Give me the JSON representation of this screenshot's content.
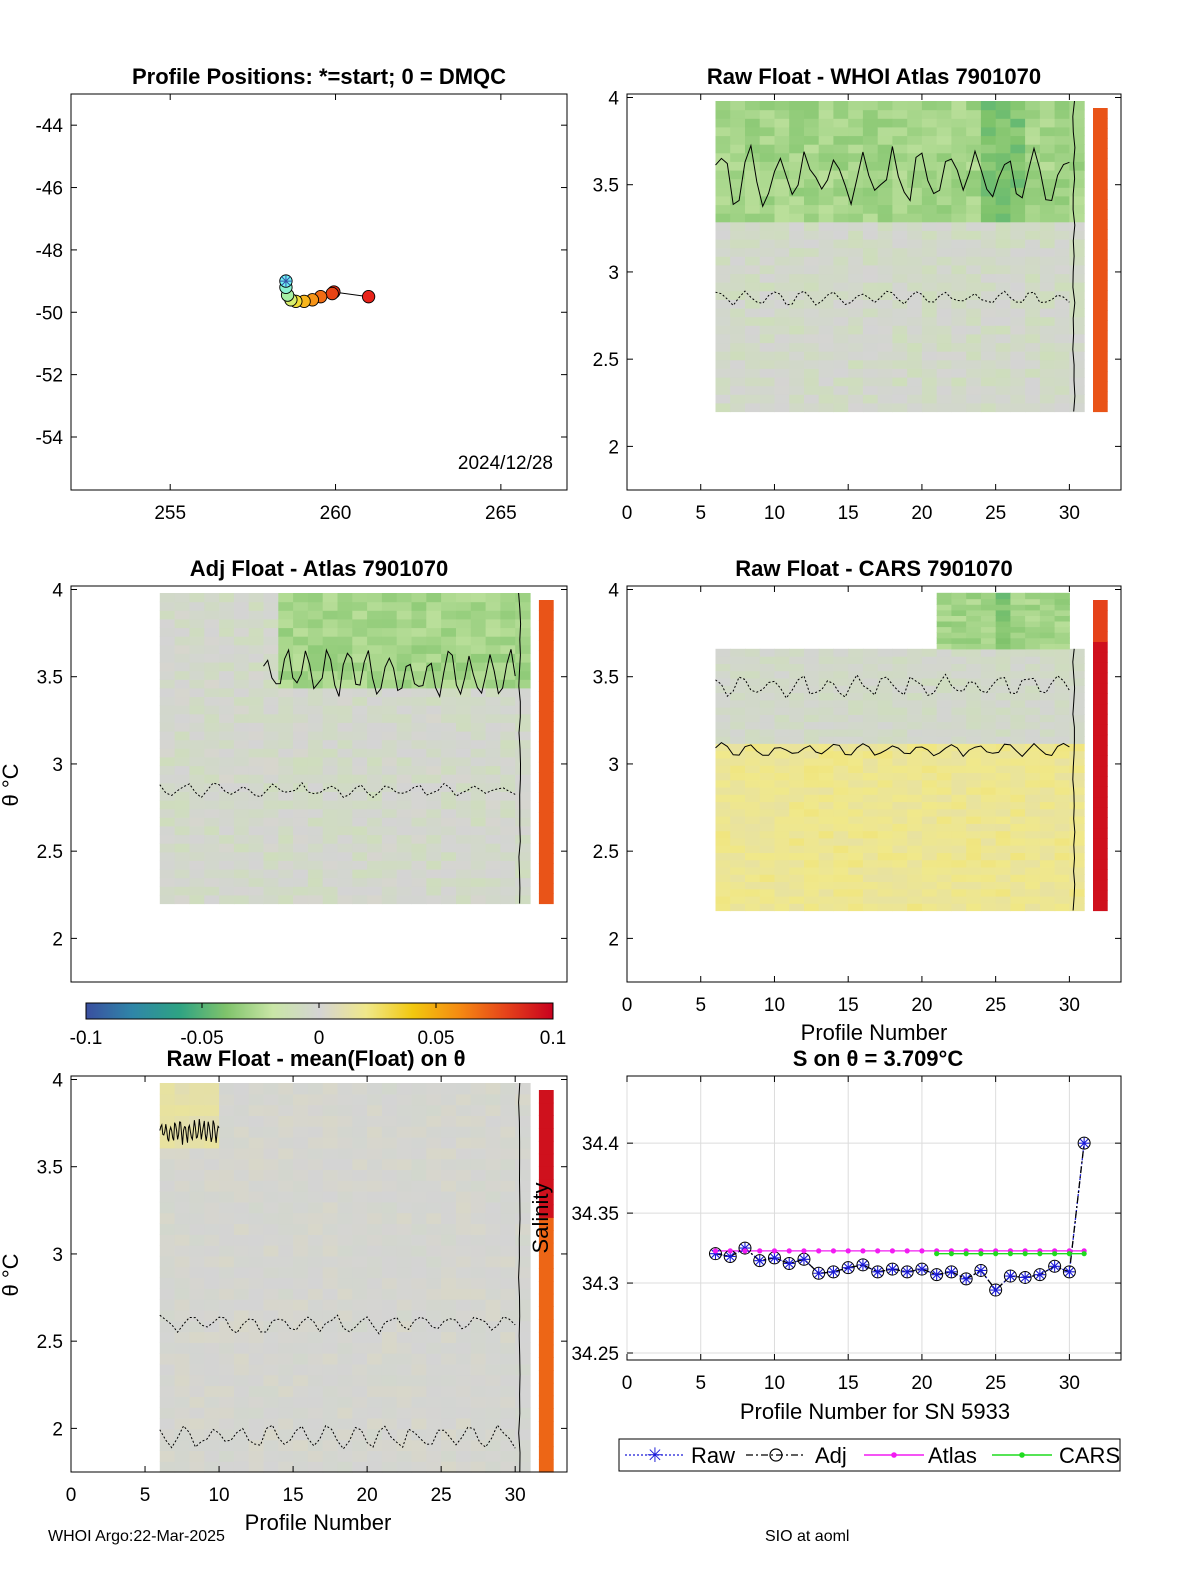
{
  "footer": {
    "left": "WHOI Argo:22-Mar-2025",
    "right": "SIO at aoml"
  },
  "colorbar": {
    "ticks": [
      "-0.1",
      "-0.05",
      "0",
      "0.05",
      "0.1"
    ],
    "range": [
      -0.1,
      0.1
    ],
    "colormap": [
      "#3a4fa0",
      "#2f86a8",
      "#2ea383",
      "#7fc36b",
      "#c9e6a6",
      "#d4d4d4",
      "#f0e88a",
      "#f2c80f",
      "#f58a12",
      "#e5421a",
      "#c8001e"
    ]
  },
  "chart_data": [
    {
      "id": "positions",
      "type": "scatter",
      "title": "Profile Positions: *=start; 0 = DMQC",
      "xlim": [
        252,
        267
      ],
      "ylim": [
        -55.7,
        -43
      ],
      "xticks": [
        "255",
        "260",
        "265"
      ],
      "yticks": [
        "-44",
        "-46",
        "-48",
        "-50",
        "-52",
        "-54"
      ],
      "date_label": "2024/12/28",
      "points": [
        {
          "x": 258.5,
          "y": -49.0,
          "c": "#70f2f4",
          "marker": "star"
        },
        {
          "x": 258.5,
          "y": -49.2,
          "c": "#8af1d0"
        },
        {
          "x": 258.55,
          "y": -49.45,
          "c": "#a6f0a4"
        },
        {
          "x": 258.65,
          "y": -49.6,
          "c": "#d8ef6e"
        },
        {
          "x": 258.8,
          "y": -49.65,
          "c": "#f2de36"
        },
        {
          "x": 259.05,
          "y": -49.65,
          "c": "#f7b51c"
        },
        {
          "x": 259.3,
          "y": -49.6,
          "c": "#f69417"
        },
        {
          "x": 259.55,
          "y": -49.5,
          "c": "#f06c14"
        },
        {
          "x": 259.9,
          "y": -49.4,
          "c": "#e84314"
        },
        {
          "x": 259.95,
          "y": -49.35,
          "c": "#e32b14"
        },
        {
          "x": 261.0,
          "y": -49.5,
          "c": "#e8231a"
        }
      ]
    },
    {
      "id": "raw-whoi",
      "type": "heatmap",
      "title": "Raw Float - WHOI Atlas  7901070",
      "xlim": [
        0,
        33.5
      ],
      "ylim": [
        1.75,
        4.02
      ],
      "xticks": [
        "0",
        "5",
        "10",
        "15",
        "20",
        "25",
        "30"
      ],
      "yticks": [
        "2",
        "2.5",
        "3",
        "3.5",
        "4"
      ],
      "xlabel": "",
      "ylabel": ""
    },
    {
      "id": "adj-atlas",
      "type": "heatmap",
      "title": "Adj Float - Atlas  7901070",
      "xlim": [
        0,
        33.5
      ],
      "ylim": [
        1.75,
        4.02
      ],
      "xticks": [],
      "yticks": [
        "2",
        "2.5",
        "3",
        "3.5",
        "4"
      ],
      "xlabel": "",
      "ylabel": "θ °C"
    },
    {
      "id": "raw-cars",
      "type": "heatmap",
      "title": "Raw Float - CARS  7901070",
      "xlim": [
        0,
        33.5
      ],
      "ylim": [
        1.75,
        4.02
      ],
      "xticks": [
        "0",
        "5",
        "10",
        "15",
        "20",
        "25",
        "30"
      ],
      "yticks": [
        "2",
        "2.5",
        "3",
        "3.5",
        "4"
      ],
      "xlabel": "Profile Number",
      "ylabel": ""
    },
    {
      "id": "raw-mean",
      "type": "heatmap",
      "title": "Raw Float - mean(Float) on θ",
      "xlim": [
        0,
        33.5
      ],
      "ylim": [
        1.75,
        4.02
      ],
      "xticks": [
        "0",
        "5",
        "10",
        "15",
        "20",
        "25",
        "30"
      ],
      "yticks": [
        "2",
        "2.5",
        "3",
        "3.5",
        "4"
      ],
      "xlabel": "Profile Number",
      "ylabel": "θ °C"
    },
    {
      "id": "s-on-theta",
      "type": "line",
      "title": "S on θ = 3.709°C",
      "xlabel": "Profile Number for SN 5933",
      "ylabel": "Salinity",
      "xlim": [
        0,
        33.5
      ],
      "ylim": [
        34.245,
        34.448
      ],
      "xticks": [
        "0",
        "5",
        "10",
        "15",
        "20",
        "25",
        "30"
      ],
      "yticks": [
        "34.25",
        "34.3",
        "34.35",
        "34.4"
      ],
      "grid": true,
      "legend": "bottom",
      "x": [
        6,
        7,
        8,
        9,
        10,
        11,
        12,
        13,
        14,
        15,
        16,
        17,
        18,
        19,
        20,
        21,
        22,
        23,
        24,
        25,
        26,
        27,
        28,
        29,
        30,
        31
      ],
      "series": [
        {
          "name": "Raw",
          "color": "#1a1ad8",
          "values": [
            34.321,
            34.319,
            34.325,
            34.316,
            34.318,
            34.314,
            34.317,
            34.307,
            34.308,
            34.311,
            34.313,
            34.308,
            34.31,
            34.308,
            34.31,
            34.306,
            34.308,
            34.303,
            34.309,
            34.295,
            34.305,
            34.304,
            34.306,
            34.312,
            34.308,
            34.4
          ]
        },
        {
          "name": "Adj",
          "color": "#000000",
          "values": [
            34.321,
            34.319,
            34.325,
            34.316,
            34.318,
            34.314,
            34.317,
            34.307,
            34.308,
            34.311,
            34.313,
            34.308,
            34.31,
            34.308,
            34.31,
            34.306,
            34.308,
            34.303,
            34.309,
            34.295,
            34.305,
            34.304,
            34.306,
            34.312,
            34.308,
            34.4
          ]
        },
        {
          "name": "Atlas",
          "color": "#f21cf2",
          "values": [
            34.323,
            34.323,
            34.323,
            34.323,
            34.323,
            34.323,
            34.323,
            34.323,
            34.323,
            34.323,
            34.323,
            34.323,
            34.323,
            34.323,
            34.323,
            34.323,
            34.323,
            34.323,
            34.323,
            34.323,
            34.323,
            34.323,
            34.323,
            34.323,
            34.323,
            34.323
          ]
        },
        {
          "name": "CARS",
          "color": "#1fdc1f",
          "x": [
            21,
            22,
            23,
            24,
            25,
            26,
            27,
            28,
            29,
            30,
            31
          ],
          "values": [
            34.321,
            34.321,
            34.321,
            34.321,
            34.321,
            34.321,
            34.321,
            34.321,
            34.321,
            34.321,
            34.321
          ]
        }
      ]
    }
  ]
}
